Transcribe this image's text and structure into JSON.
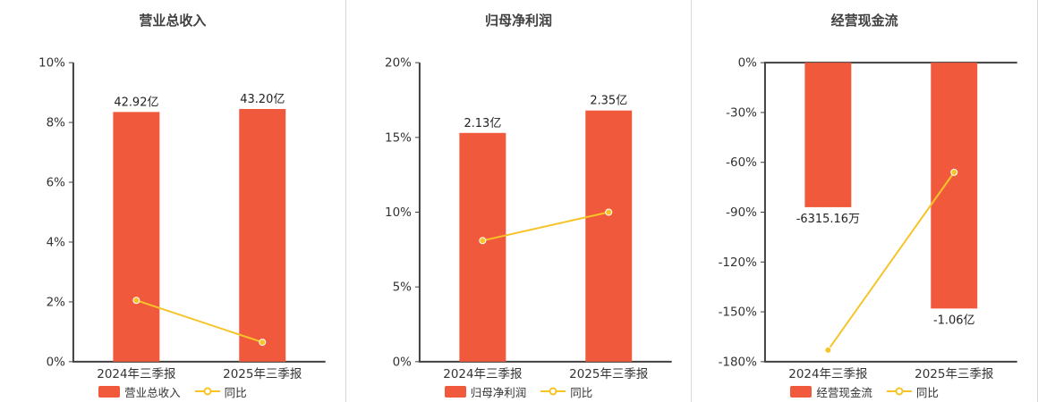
{
  "colors": {
    "bar": "#f1593d",
    "line": "#f7c428",
    "axis": "#404040",
    "text": "#333333",
    "divider": "#d9d9d9"
  },
  "chart_data": [
    {
      "type": "bar",
      "title": "营业总收入",
      "categories": [
        "2024年三季报",
        "2025年三季报"
      ],
      "series": [
        {
          "name": "营业总收入",
          "kind": "bar",
          "labels": [
            "42.92亿",
            "43.20亿"
          ],
          "values_pct": [
            8.35,
            8.45
          ]
        },
        {
          "name": "同比",
          "kind": "line",
          "values_pct": [
            2.05,
            0.65
          ]
        }
      ],
      "ylim": [
        0,
        10
      ],
      "yticks": [
        10,
        8,
        6,
        4,
        2,
        0
      ],
      "ylabel_suffix": "%",
      "legend": [
        "营业总收入",
        "同比"
      ]
    },
    {
      "type": "bar",
      "title": "归母净利润",
      "categories": [
        "2024年三季报",
        "2025年三季报"
      ],
      "series": [
        {
          "name": "归母净利润",
          "kind": "bar",
          "labels": [
            "2.13亿",
            "2.35亿"
          ],
          "values_pct": [
            15.3,
            16.8
          ]
        },
        {
          "name": "同比",
          "kind": "line",
          "values_pct": [
            8.1,
            10.0
          ]
        }
      ],
      "ylim": [
        0,
        20
      ],
      "yticks": [
        20,
        15,
        10,
        5,
        0
      ],
      "ylabel_suffix": "%",
      "legend": [
        "归母净利润",
        "同比"
      ]
    },
    {
      "type": "bar",
      "title": "经营现金流",
      "categories": [
        "2024年三季报",
        "2025年三季报"
      ],
      "series": [
        {
          "name": "经营现金流",
          "kind": "bar",
          "labels": [
            "-6315.16万",
            "-1.06亿"
          ],
          "values_pct": [
            -87,
            -148
          ]
        },
        {
          "name": "同比",
          "kind": "line",
          "values_pct": [
            -173,
            -66
          ]
        }
      ],
      "ylim": [
        -180,
        0
      ],
      "yticks": [
        0,
        -30,
        -60,
        -90,
        -120,
        -150,
        -180
      ],
      "ylabel_suffix": "%",
      "legend": [
        "经营现金流",
        "同比"
      ]
    }
  ]
}
